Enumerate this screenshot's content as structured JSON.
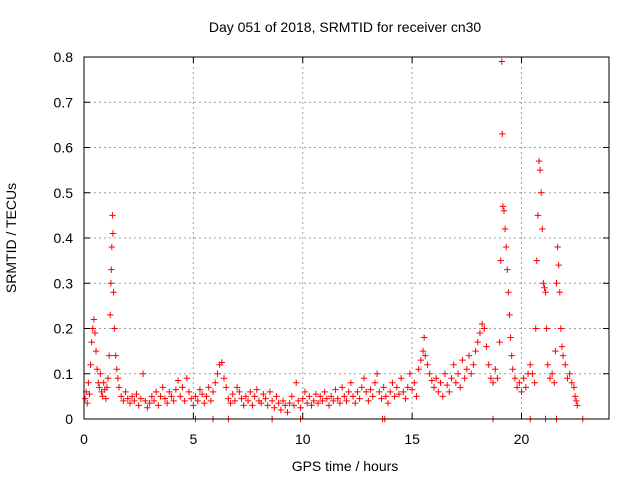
{
  "chart_data": {
    "type": "scatter",
    "title": "Day 051 of 2018, SRMTID for receiver cn30",
    "xlabel": "GPS time / hours",
    "ylabel": "SRMTID / TECUs",
    "xlim": [
      0,
      24
    ],
    "ylim": [
      0,
      0.8
    ],
    "grid": true,
    "marker": "+",
    "series_color": "#ff0000",
    "x_ticks": [
      {
        "value": 0,
        "label": "0"
      },
      {
        "value": 5,
        "label": "5"
      },
      {
        "value": 10,
        "label": "10"
      },
      {
        "value": 15,
        "label": "15"
      },
      {
        "value": 20,
        "label": "20"
      }
    ],
    "y_ticks": [
      {
        "value": 0,
        "label": "0"
      },
      {
        "value": 0.1,
        "label": "0.1"
      },
      {
        "value": 0.2,
        "label": "0.2"
      },
      {
        "value": 0.3,
        "label": "0.3"
      },
      {
        "value": 0.4,
        "label": "0.4"
      },
      {
        "value": 0.5,
        "label": "0.5"
      },
      {
        "value": 0.6,
        "label": "0.6"
      },
      {
        "value": 0.7,
        "label": "0.7"
      },
      {
        "value": 0.8,
        "label": "0.8"
      }
    ],
    "series": [
      {
        "name": "SRMTID",
        "points": [
          [
            0.05,
            0.045
          ],
          [
            0.1,
            0.06
          ],
          [
            0.15,
            0.035
          ],
          [
            0.2,
            0.08
          ],
          [
            0.25,
            0.055
          ],
          [
            0.3,
            0.12
          ],
          [
            0.35,
            0.17
          ],
          [
            0.4,
            0.2
          ],
          [
            0.45,
            0.22
          ],
          [
            0.5,
            0.19
          ],
          [
            0.55,
            0.15
          ],
          [
            0.6,
            0.11
          ],
          [
            0.65,
            0.08
          ],
          [
            0.7,
            0.07
          ],
          [
            0.75,
            0.1
          ],
          [
            0.8,
            0.06
          ],
          [
            0.85,
            0.05
          ],
          [
            0.9,
            0.08
          ],
          [
            0.95,
            0.065
          ],
          [
            1.0,
            0.045
          ],
          [
            1.05,
            0.07
          ],
          [
            1.1,
            0.09
          ],
          [
            1.15,
            0.14
          ],
          [
            1.2,
            0.23
          ],
          [
            1.23,
            0.3
          ],
          [
            1.25,
            0.33
          ],
          [
            1.27,
            0.38
          ],
          [
            1.3,
            0.45
          ],
          [
            1.32,
            0.41
          ],
          [
            1.35,
            0.28
          ],
          [
            1.4,
            0.2
          ],
          [
            1.45,
            0.14
          ],
          [
            1.5,
            0.11
          ],
          [
            1.55,
            0.09
          ],
          [
            1.6,
            0.07
          ],
          [
            1.7,
            0.05
          ],
          [
            1.8,
            0.04
          ],
          [
            1.9,
            0.06
          ],
          [
            2.0,
            0.045
          ],
          [
            2.1,
            0.035
          ],
          [
            2.2,
            0.05
          ],
          [
            2.3,
            0.04
          ],
          [
            2.4,
            0.055
          ],
          [
            2.5,
            0.03
          ],
          [
            2.6,
            0.045
          ],
          [
            2.7,
            0.1
          ],
          [
            2.8,
            0.04
          ],
          [
            2.9,
            0.025
          ],
          [
            3.0,
            0.035
          ],
          [
            3.1,
            0.05
          ],
          [
            3.2,
            0.04
          ],
          [
            3.3,
            0.06
          ],
          [
            3.4,
            0.03
          ],
          [
            3.5,
            0.05
          ],
          [
            3.6,
            0.07
          ],
          [
            3.7,
            0.045
          ],
          [
            3.8,
            0.035
          ],
          [
            3.9,
            0.06
          ],
          [
            4.0,
            0.05
          ],
          [
            4.1,
            0.04
          ],
          [
            4.2,
            0.065
          ],
          [
            4.3,
            0.085
          ],
          [
            4.4,
            0.05
          ],
          [
            4.5,
            0.07
          ],
          [
            4.6,
            0.04
          ],
          [
            4.7,
            0.09
          ],
          [
            4.8,
            0.06
          ],
          [
            4.9,
            0.045
          ],
          [
            5.0,
            0.03
          ],
          [
            5.1,
            0.05
          ],
          [
            5.2,
            0.04
          ],
          [
            5.3,
            0.065
          ],
          [
            5.4,
            0.055
          ],
          [
            5.5,
            0.035
          ],
          [
            5.6,
            0.05
          ],
          [
            5.7,
            0.07
          ],
          [
            5.8,
            0.04
          ],
          [
            5.9,
            0.06
          ],
          [
            6.0,
            0.08
          ],
          [
            6.1,
            0.1
          ],
          [
            6.2,
            0.12
          ],
          [
            6.3,
            0.125
          ],
          [
            6.4,
            0.09
          ],
          [
            6.5,
            0.07
          ],
          [
            6.6,
            0.045
          ],
          [
            6.7,
            0.035
          ],
          [
            6.8,
            0.055
          ],
          [
            6.9,
            0.04
          ],
          [
            7.0,
            0.07
          ],
          [
            7.1,
            0.06
          ],
          [
            7.2,
            0.045
          ],
          [
            7.3,
            0.03
          ],
          [
            7.4,
            0.05
          ],
          [
            7.5,
            0.04
          ],
          [
            7.6,
            0.06
          ],
          [
            7.7,
            0.03
          ],
          [
            7.8,
            0.05
          ],
          [
            7.9,
            0.065
          ],
          [
            8.0,
            0.04
          ],
          [
            8.1,
            0.035
          ],
          [
            8.2,
            0.055
          ],
          [
            8.3,
            0.045
          ],
          [
            8.4,
            0.03
          ],
          [
            8.5,
            0.06
          ],
          [
            8.6,
            0.04
          ],
          [
            8.7,
            0.025
          ],
          [
            8.8,
            0.05
          ],
          [
            8.9,
            0.035
          ],
          [
            9.0,
            0.02
          ],
          [
            9.1,
            0.04
          ],
          [
            9.2,
            0.03
          ],
          [
            9.3,
            0.015
          ],
          [
            9.4,
            0.035
          ],
          [
            9.5,
            0.05
          ],
          [
            9.6,
            0.03
          ],
          [
            9.7,
            0.08
          ],
          [
            9.8,
            0.04
          ],
          [
            9.9,
            0.025
          ],
          [
            10.0,
            0.045
          ],
          [
            10.1,
            0.06
          ],
          [
            10.2,
            0.035
          ],
          [
            10.3,
            0.05
          ],
          [
            10.4,
            0.03
          ],
          [
            10.5,
            0.04
          ],
          [
            10.6,
            0.055
          ],
          [
            10.7,
            0.035
          ],
          [
            10.8,
            0.05
          ],
          [
            10.9,
            0.04
          ],
          [
            11.0,
            0.06
          ],
          [
            11.1,
            0.045
          ],
          [
            11.2,
            0.03
          ],
          [
            11.3,
            0.05
          ],
          [
            11.4,
            0.04
          ],
          [
            11.5,
            0.065
          ],
          [
            11.6,
            0.045
          ],
          [
            11.7,
            0.035
          ],
          [
            11.8,
            0.07
          ],
          [
            11.9,
            0.05
          ],
          [
            12.0,
            0.04
          ],
          [
            12.1,
            0.06
          ],
          [
            12.2,
            0.08
          ],
          [
            12.3,
            0.05
          ],
          [
            12.4,
            0.035
          ],
          [
            12.5,
            0.06
          ],
          [
            12.6,
            0.045
          ],
          [
            12.7,
            0.07
          ],
          [
            12.8,
            0.09
          ],
          [
            12.9,
            0.06
          ],
          [
            13.0,
            0.04
          ],
          [
            13.1,
            0.065
          ],
          [
            13.2,
            0.05
          ],
          [
            13.3,
            0.08
          ],
          [
            13.4,
            0.1
          ],
          [
            13.5,
            0.06
          ],
          [
            13.6,
            0.045
          ],
          [
            13.7,
            0.07
          ],
          [
            13.8,
            0.05
          ],
          [
            13.9,
            0.035
          ],
          [
            14.0,
            0.06
          ],
          [
            14.1,
            0.08
          ],
          [
            14.2,
            0.05
          ],
          [
            14.3,
            0.07
          ],
          [
            14.4,
            0.055
          ],
          [
            14.5,
            0.09
          ],
          [
            14.6,
            0.06
          ],
          [
            14.7,
            0.045
          ],
          [
            14.8,
            0.07
          ],
          [
            14.9,
            0.1
          ],
          [
            15.0,
            0.065
          ],
          [
            15.1,
            0.08
          ],
          [
            15.2,
            0.05
          ],
          [
            15.3,
            0.11
          ],
          [
            15.4,
            0.13
          ],
          [
            15.5,
            0.15
          ],
          [
            15.55,
            0.18
          ],
          [
            15.6,
            0.14
          ],
          [
            15.7,
            0.12
          ],
          [
            15.8,
            0.1
          ],
          [
            15.9,
            0.085
          ],
          [
            16.0,
            0.07
          ],
          [
            16.1,
            0.09
          ],
          [
            16.2,
            0.06
          ],
          [
            16.3,
            0.08
          ],
          [
            16.4,
            0.05
          ],
          [
            16.5,
            0.1
          ],
          [
            16.6,
            0.075
          ],
          [
            16.7,
            0.06
          ],
          [
            16.8,
            0.09
          ],
          [
            16.9,
            0.12
          ],
          [
            17.0,
            0.08
          ],
          [
            17.1,
            0.1
          ],
          [
            17.2,
            0.07
          ],
          [
            17.3,
            0.13
          ],
          [
            17.4,
            0.09
          ],
          [
            17.5,
            0.11
          ],
          [
            17.6,
            0.14
          ],
          [
            17.7,
            0.1
          ],
          [
            17.8,
            0.12
          ],
          [
            17.9,
            0.15
          ],
          [
            18.0,
            0.17
          ],
          [
            18.1,
            0.19
          ],
          [
            18.2,
            0.21
          ],
          [
            18.3,
            0.2
          ],
          [
            18.4,
            0.16
          ],
          [
            18.5,
            0.12
          ],
          [
            18.6,
            0.09
          ],
          [
            18.7,
            0.08
          ],
          [
            18.8,
            0.11
          ],
          [
            18.9,
            0.09
          ],
          [
            19.0,
            0.17
          ],
          [
            19.05,
            0.35
          ],
          [
            19.1,
            0.79
          ],
          [
            19.12,
            0.63
          ],
          [
            19.15,
            0.47
          ],
          [
            19.2,
            0.46
          ],
          [
            19.25,
            0.42
          ],
          [
            19.3,
            0.38
          ],
          [
            19.35,
            0.33
          ],
          [
            19.4,
            0.28
          ],
          [
            19.45,
            0.23
          ],
          [
            19.5,
            0.18
          ],
          [
            19.55,
            0.14
          ],
          [
            19.6,
            0.11
          ],
          [
            19.7,
            0.09
          ],
          [
            19.8,
            0.07
          ],
          [
            19.9,
            0.08
          ],
          [
            20.0,
            0.06
          ],
          [
            20.1,
            0.09
          ],
          [
            20.2,
            0.07
          ],
          [
            20.3,
            0.1
          ],
          [
            20.4,
            0.12
          ],
          [
            20.5,
            0.1
          ],
          [
            20.6,
            0.08
          ],
          [
            20.65,
            0.2
          ],
          [
            20.7,
            0.35
          ],
          [
            20.75,
            0.45
          ],
          [
            20.8,
            0.57
          ],
          [
            20.85,
            0.55
          ],
          [
            20.9,
            0.5
          ],
          [
            20.95,
            0.42
          ],
          [
            21.0,
            0.3
          ],
          [
            21.05,
            0.29
          ],
          [
            21.1,
            0.28
          ],
          [
            21.15,
            0.2
          ],
          [
            21.2,
            0.12
          ],
          [
            21.3,
            0.09
          ],
          [
            21.4,
            0.1
          ],
          [
            21.5,
            0.08
          ],
          [
            21.55,
            0.15
          ],
          [
            21.6,
            0.3
          ],
          [
            21.65,
            0.38
          ],
          [
            21.7,
            0.34
          ],
          [
            21.75,
            0.28
          ],
          [
            21.8,
            0.2
          ],
          [
            21.85,
            0.16
          ],
          [
            21.9,
            0.14
          ],
          [
            22.0,
            0.12
          ],
          [
            22.1,
            0.09
          ],
          [
            22.2,
            0.1
          ],
          [
            22.3,
            0.08
          ],
          [
            22.4,
            0.07
          ],
          [
            22.45,
            0.05
          ],
          [
            22.5,
            0.04
          ],
          [
            22.55,
            0.03
          ],
          [
            5.1,
            0.0
          ],
          [
            5.9,
            0.0
          ],
          [
            6.6,
            0.0
          ],
          [
            8.6,
            0.0
          ],
          [
            9.9,
            0.0
          ],
          [
            13.65,
            0.0
          ],
          [
            13.75,
            0.0
          ],
          [
            18.7,
            0.0
          ],
          [
            20.4,
            0.0
          ],
          [
            21.1,
            0.0
          ],
          [
            21.6,
            0.0
          ],
          [
            22.8,
            0.0
          ]
        ]
      }
    ]
  }
}
